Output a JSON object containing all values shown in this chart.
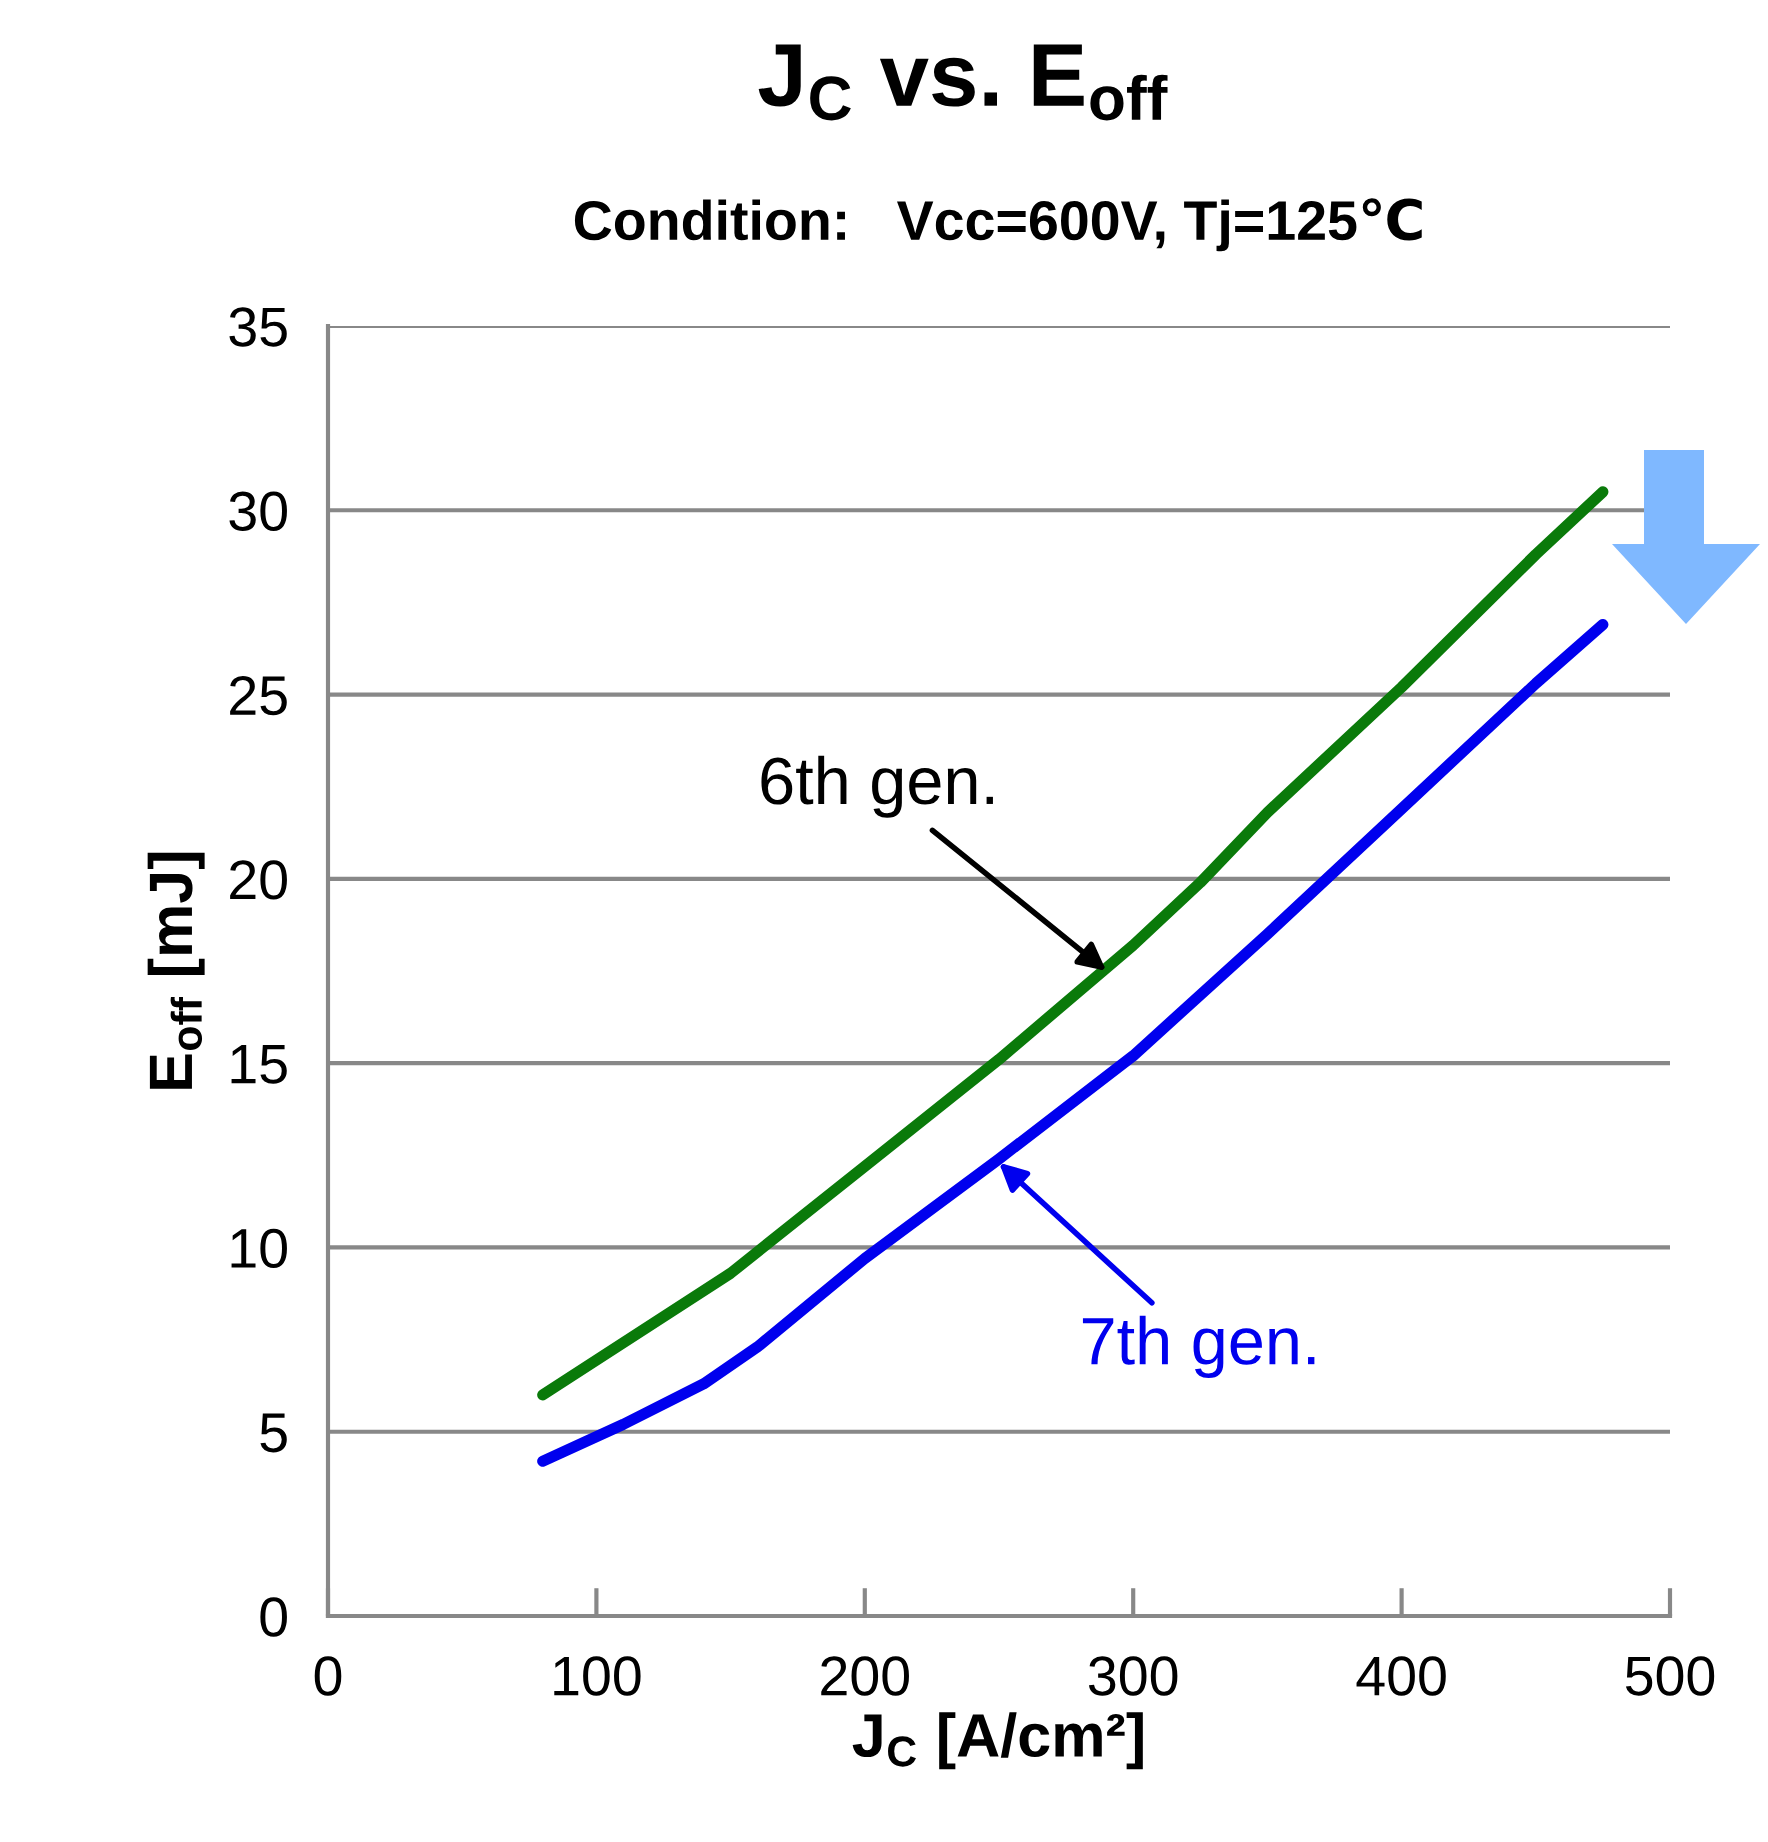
{
  "chart_data": {
    "type": "line",
    "title": "J$_{C}$ vs. E$_{off}$",
    "subtitle": "Condition:   Vcc=600V, Tj=125℃",
    "xlabel": "J$_{C}$ [A/cm²]",
    "ylabel": "E$_{off}$ [mJ]",
    "xlim": [
      0,
      500
    ],
    "xticks": [
      0,
      100,
      200,
      300,
      400,
      500
    ],
    "ylim": [
      0,
      35
    ],
    "yticks": [
      0,
      5,
      10,
      15,
      20,
      25,
      30,
      35
    ],
    "grid": "y",
    "marker": "none",
    "line_style": "solid",
    "series": [
      {
        "color": "#0a7a0a",
        "x": [
          80,
          150,
          200,
          250,
          300,
          325,
          350,
          400,
          450,
          475
        ],
        "values": [
          6.0,
          9.3,
          12.2,
          15.1,
          18.2,
          19.9,
          21.8,
          25.2,
          28.8,
          30.5
        ]
      },
      {
        "color": "#0000ee",
        "x": [
          80,
          110,
          140,
          160,
          200,
          250,
          300,
          350,
          400,
          450,
          475
        ],
        "values": [
          4.2,
          5.2,
          6.3,
          7.3,
          9.7,
          12.4,
          15.2,
          18.5,
          21.9,
          25.3,
          26.9
        ]
      }
    ],
    "annotations": [
      {
        "text": "6th gen.",
        "x": 290,
        "y": 17.5
      },
      {
        "text": "7th gen.",
        "x": 250,
        "y": 12.3
      }
    ]
  }
}
